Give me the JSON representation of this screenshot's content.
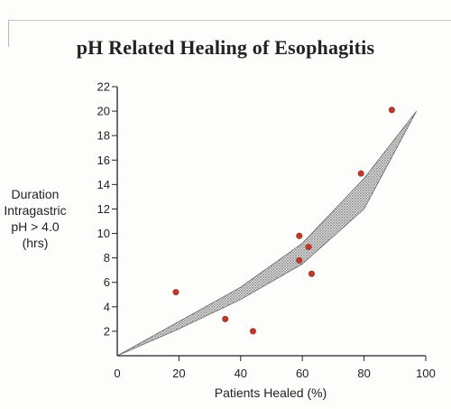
{
  "chart_data": {
    "type": "scatter",
    "title": "pH Related Healing of Esophagitis",
    "xlabel": "Patients Healed (%)",
    "ylabel": [
      "Duration",
      "Intragastric",
      "pH > 4.0",
      "(hrs)"
    ],
    "xlim": [
      0,
      100
    ],
    "ylim": [
      0,
      22
    ],
    "x_ticks": [
      "0",
      "20",
      "40",
      "60",
      "80",
      "100"
    ],
    "y_ticks": [
      "2",
      "4",
      "6",
      "8",
      "10",
      "12",
      "14",
      "16",
      "18",
      "20",
      "22"
    ],
    "grid": false,
    "points_color": "#c0392b",
    "band_color": "#8a8a8a",
    "points": [
      {
        "x": 19,
        "y": 5.2
      },
      {
        "x": 35,
        "y": 3.0
      },
      {
        "x": 44,
        "y": 2.0
      },
      {
        "x": 59,
        "y": 9.8
      },
      {
        "x": 59,
        "y": 7.8
      },
      {
        "x": 62,
        "y": 8.9
      },
      {
        "x": 63,
        "y": 6.7
      },
      {
        "x": 79,
        "y": 14.9
      },
      {
        "x": 89,
        "y": 20.1
      }
    ],
    "band": {
      "lower": [
        [
          0,
          0
        ],
        [
          20,
          2.2
        ],
        [
          40,
          4.6
        ],
        [
          60,
          7.5
        ],
        [
          80,
          12.0
        ],
        [
          97,
          20.0
        ]
      ],
      "upper": [
        [
          0,
          0
        ],
        [
          20,
          2.8
        ],
        [
          40,
          5.6
        ],
        [
          60,
          9.2
        ],
        [
          80,
          14.5
        ],
        [
          97,
          20.0
        ]
      ]
    }
  }
}
